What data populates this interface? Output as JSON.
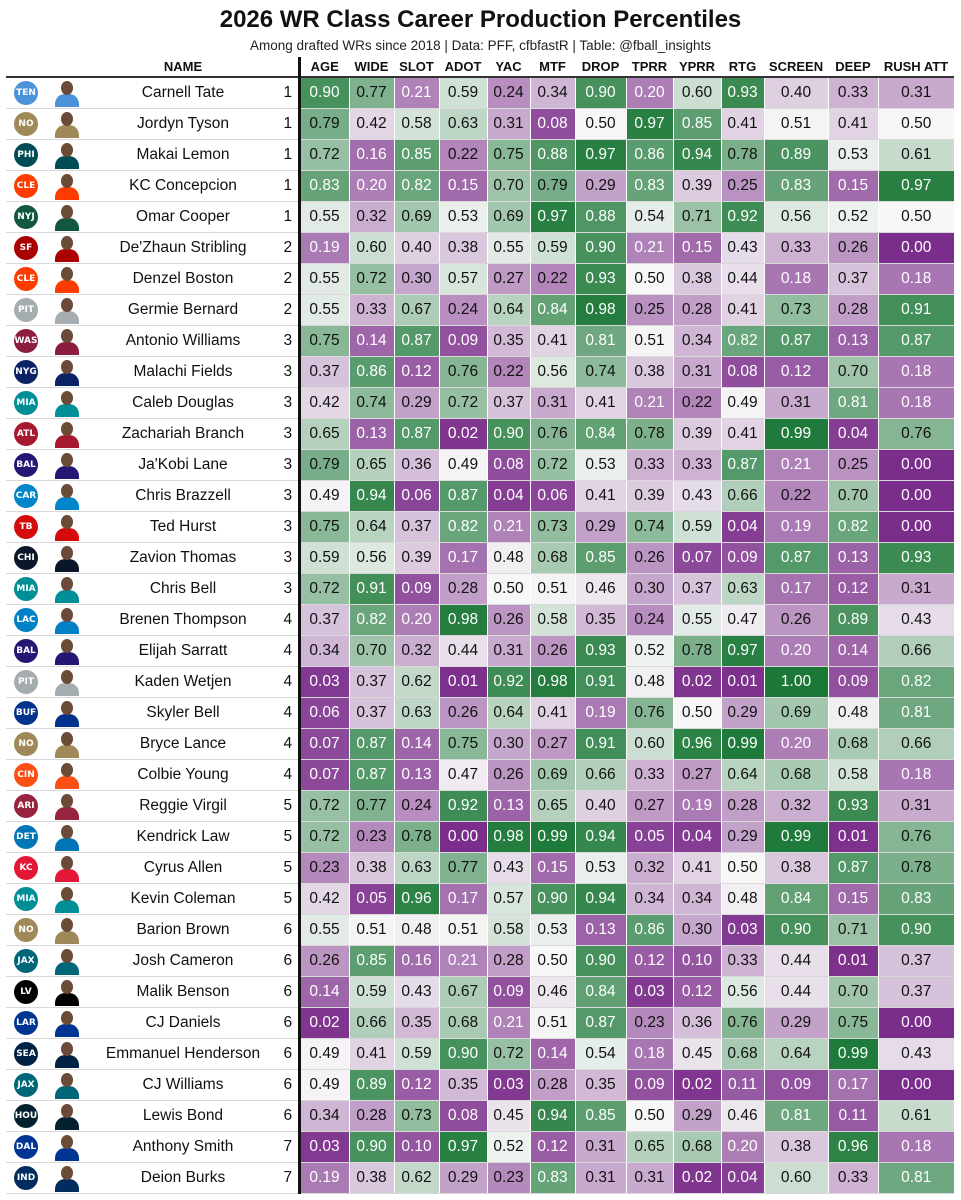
{
  "chart_data": {
    "type": "table",
    "title": "2026 WR Class Career Production Percentiles",
    "subtitle": "Among drafted WRs since 2018 | Data: PFF, cfbfastR | Table: @fball_insights",
    "columns": [
      "NAME",
      "AGE",
      "WIDE",
      "SLOT",
      "ADOT",
      "YAC",
      "MTF",
      "DROP",
      "TPRR",
      "YPRR",
      "RTG",
      "SCREEN",
      "DEEP",
      "RUSH ATT"
    ],
    "color_scale": {
      "low": "#7b2d8b",
      "mid": "#f7f7f7",
      "high": "#1b7837"
    },
    "rows": [
      {
        "team": "TEN",
        "team_color": "#4b92db",
        "name": "Carnell Tate",
        "round": "1",
        "values": [
          "0.90",
          "0.77",
          "0.21",
          "0.59",
          "0.24",
          "0.34",
          "0.90",
          "0.20",
          "0.60",
          "0.93",
          "0.40",
          "0.33",
          "0.31"
        ]
      },
      {
        "team": "NO",
        "team_color": "#9f8958",
        "name": "Jordyn Tyson",
        "round": "1",
        "values": [
          "0.79",
          "0.42",
          "0.58",
          "0.63",
          "0.31",
          "0.08",
          "0.50",
          "0.97",
          "0.85",
          "0.41",
          "0.51",
          "0.41",
          "0.50"
        ]
      },
      {
        "team": "PHI",
        "team_color": "#004c54",
        "name": "Makai Lemon",
        "round": "1",
        "values": [
          "0.72",
          "0.16",
          "0.85",
          "0.22",
          "0.75",
          "0.88",
          "0.97",
          "0.86",
          "0.94",
          "0.78",
          "0.89",
          "0.53",
          "0.61"
        ]
      },
      {
        "team": "CLE",
        "team_color": "#ff3c00",
        "name": "KC Concepcion",
        "round": "1",
        "values": [
          "0.83",
          "0.20",
          "0.82",
          "0.15",
          "0.70",
          "0.79",
          "0.29",
          "0.83",
          "0.39",
          "0.25",
          "0.83",
          "0.15",
          "0.97"
        ]
      },
      {
        "team": "NYJ",
        "team_color": "#125740",
        "name": "Omar Cooper",
        "round": "1",
        "values": [
          "0.55",
          "0.32",
          "0.69",
          "0.53",
          "0.69",
          "0.97",
          "0.88",
          "0.54",
          "0.71",
          "0.92",
          "0.56",
          "0.52",
          "0.50"
        ]
      },
      {
        "team": "SF",
        "team_color": "#aa0000",
        "name": "De'Zhaun Stribling",
        "round": "2",
        "values": [
          "0.19",
          "0.60",
          "0.40",
          "0.38",
          "0.55",
          "0.59",
          "0.90",
          "0.21",
          "0.15",
          "0.43",
          "0.33",
          "0.26",
          "0.00"
        ]
      },
      {
        "team": "CLE",
        "team_color": "#ff3c00",
        "name": "Denzel Boston",
        "round": "2",
        "values": [
          "0.55",
          "0.72",
          "0.30",
          "0.57",
          "0.27",
          "0.22",
          "0.93",
          "0.50",
          "0.38",
          "0.44",
          "0.18",
          "0.37",
          "0.18"
        ]
      },
      {
        "team": "PIT",
        "team_color": "#a5acaf",
        "name": "Germie Bernard",
        "round": "2",
        "values": [
          "0.55",
          "0.33",
          "0.67",
          "0.24",
          "0.64",
          "0.84",
          "0.98",
          "0.25",
          "0.28",
          "0.41",
          "0.73",
          "0.28",
          "0.91"
        ]
      },
      {
        "team": "WAS",
        "team_color": "#8b1e3f",
        "name": "Antonio Williams",
        "round": "3",
        "values": [
          "0.75",
          "0.14",
          "0.87",
          "0.09",
          "0.35",
          "0.41",
          "0.81",
          "0.51",
          "0.34",
          "0.82",
          "0.87",
          "0.13",
          "0.87"
        ]
      },
      {
        "team": "NYG",
        "team_color": "#0b2265",
        "name": "Malachi Fields",
        "round": "3",
        "values": [
          "0.37",
          "0.86",
          "0.12",
          "0.76",
          "0.22",
          "0.56",
          "0.74",
          "0.38",
          "0.31",
          "0.08",
          "0.12",
          "0.70",
          "0.18"
        ]
      },
      {
        "team": "MIA",
        "team_color": "#008e97",
        "name": "Caleb Douglas",
        "round": "3",
        "values": [
          "0.42",
          "0.74",
          "0.29",
          "0.72",
          "0.37",
          "0.31",
          "0.41",
          "0.21",
          "0.22",
          "0.49",
          "0.31",
          "0.81",
          "0.18"
        ]
      },
      {
        "team": "ATL",
        "team_color": "#a71930",
        "name": "Zachariah Branch",
        "round": "3",
        "values": [
          "0.65",
          "0.13",
          "0.87",
          "0.02",
          "0.90",
          "0.76",
          "0.84",
          "0.78",
          "0.39",
          "0.41",
          "0.99",
          "0.04",
          "0.76"
        ]
      },
      {
        "team": "BAL",
        "team_color": "#241773",
        "name": "Ja'Kobi Lane",
        "round": "3",
        "values": [
          "0.79",
          "0.65",
          "0.36",
          "0.49",
          "0.08",
          "0.72",
          "0.53",
          "0.33",
          "0.33",
          "0.87",
          "0.21",
          "0.25",
          "0.00"
        ]
      },
      {
        "team": "CAR",
        "team_color": "#0085ca",
        "name": "Chris Brazzell",
        "round": "3",
        "values": [
          "0.49",
          "0.94",
          "0.06",
          "0.87",
          "0.04",
          "0.06",
          "0.41",
          "0.39",
          "0.43",
          "0.66",
          "0.22",
          "0.70",
          "0.00"
        ]
      },
      {
        "team": "TB",
        "team_color": "#d50a0a",
        "name": "Ted Hurst",
        "round": "3",
        "values": [
          "0.75",
          "0.64",
          "0.37",
          "0.82",
          "0.21",
          "0.73",
          "0.29",
          "0.74",
          "0.59",
          "0.04",
          "0.19",
          "0.82",
          "0.00"
        ]
      },
      {
        "team": "CHI",
        "team_color": "#0b162a",
        "name": "Zavion Thomas",
        "round": "3",
        "values": [
          "0.59",
          "0.56",
          "0.39",
          "0.17",
          "0.48",
          "0.68",
          "0.85",
          "0.26",
          "0.07",
          "0.09",
          "0.87",
          "0.13",
          "0.93"
        ]
      },
      {
        "team": "MIA",
        "team_color": "#008e97",
        "name": "Chris Bell",
        "round": "3",
        "values": [
          "0.72",
          "0.91",
          "0.09",
          "0.28",
          "0.50",
          "0.51",
          "0.46",
          "0.30",
          "0.37",
          "0.63",
          "0.17",
          "0.12",
          "0.31"
        ]
      },
      {
        "team": "LAC",
        "team_color": "#0080c6",
        "name": "Brenen Thompson",
        "round": "4",
        "values": [
          "0.37",
          "0.82",
          "0.20",
          "0.98",
          "0.26",
          "0.58",
          "0.35",
          "0.24",
          "0.55",
          "0.47",
          "0.26",
          "0.89",
          "0.43"
        ]
      },
      {
        "team": "BAL",
        "team_color": "#241773",
        "name": "Elijah Sarratt",
        "round": "4",
        "values": [
          "0.34",
          "0.70",
          "0.32",
          "0.44",
          "0.31",
          "0.26",
          "0.93",
          "0.52",
          "0.78",
          "0.97",
          "0.20",
          "0.14",
          "0.66"
        ]
      },
      {
        "team": "PIT",
        "team_color": "#a5acaf",
        "name": "Kaden Wetjen",
        "round": "4",
        "values": [
          "0.03",
          "0.37",
          "0.62",
          "0.01",
          "0.92",
          "0.98",
          "0.91",
          "0.48",
          "0.02",
          "0.01",
          "1.00",
          "0.09",
          "0.82"
        ]
      },
      {
        "team": "BUF",
        "team_color": "#00338d",
        "name": "Skyler Bell",
        "round": "4",
        "values": [
          "0.06",
          "0.37",
          "0.63",
          "0.26",
          "0.64",
          "0.41",
          "0.19",
          "0.76",
          "0.50",
          "0.29",
          "0.69",
          "0.48",
          "0.81"
        ]
      },
      {
        "team": "NO",
        "team_color": "#9f8958",
        "name": "Bryce Lance",
        "round": "4",
        "values": [
          "0.07",
          "0.87",
          "0.14",
          "0.75",
          "0.30",
          "0.27",
          "0.91",
          "0.60",
          "0.96",
          "0.99",
          "0.20",
          "0.68",
          "0.66"
        ]
      },
      {
        "team": "CIN",
        "team_color": "#fb4f14",
        "name": "Colbie Young",
        "round": "4",
        "values": [
          "0.07",
          "0.87",
          "0.13",
          "0.47",
          "0.26",
          "0.69",
          "0.66",
          "0.33",
          "0.27",
          "0.64",
          "0.68",
          "0.58",
          "0.18"
        ]
      },
      {
        "team": "ARI",
        "team_color": "#97233f",
        "name": "Reggie Virgil",
        "round": "5",
        "values": [
          "0.72",
          "0.77",
          "0.24",
          "0.92",
          "0.13",
          "0.65",
          "0.40",
          "0.27",
          "0.19",
          "0.28",
          "0.32",
          "0.93",
          "0.31"
        ]
      },
      {
        "team": "DET",
        "team_color": "#0076b6",
        "name": "Kendrick Law",
        "round": "5",
        "values": [
          "0.72",
          "0.23",
          "0.78",
          "0.00",
          "0.98",
          "0.99",
          "0.94",
          "0.05",
          "0.04",
          "0.29",
          "0.99",
          "0.01",
          "0.76"
        ]
      },
      {
        "team": "KC",
        "team_color": "#e31837",
        "name": "Cyrus Allen",
        "round": "5",
        "values": [
          "0.23",
          "0.38",
          "0.63",
          "0.77",
          "0.43",
          "0.15",
          "0.53",
          "0.32",
          "0.41",
          "0.50",
          "0.38",
          "0.87",
          "0.78"
        ]
      },
      {
        "team": "MIA",
        "team_color": "#008e97",
        "name": "Kevin Coleman",
        "round": "5",
        "values": [
          "0.42",
          "0.05",
          "0.96",
          "0.17",
          "0.57",
          "0.90",
          "0.94",
          "0.34",
          "0.34",
          "0.48",
          "0.84",
          "0.15",
          "0.83"
        ]
      },
      {
        "team": "NO",
        "team_color": "#9f8958",
        "name": "Barion Brown",
        "round": "6",
        "values": [
          "0.55",
          "0.51",
          "0.48",
          "0.51",
          "0.58",
          "0.53",
          "0.13",
          "0.86",
          "0.30",
          "0.03",
          "0.90",
          "0.71",
          "0.90"
        ]
      },
      {
        "team": "JAX",
        "team_color": "#006778",
        "name": "Josh Cameron",
        "round": "6",
        "values": [
          "0.26",
          "0.85",
          "0.16",
          "0.21",
          "0.28",
          "0.50",
          "0.90",
          "0.12",
          "0.10",
          "0.33",
          "0.44",
          "0.01",
          "0.37"
        ]
      },
      {
        "team": "LV",
        "team_color": "#000000",
        "name": "Malik Benson",
        "round": "6",
        "values": [
          "0.14",
          "0.59",
          "0.43",
          "0.67",
          "0.09",
          "0.46",
          "0.84",
          "0.03",
          "0.12",
          "0.56",
          "0.44",
          "0.70",
          "0.37"
        ]
      },
      {
        "team": "LAR",
        "team_color": "#003594",
        "name": "CJ Daniels",
        "round": "6",
        "values": [
          "0.02",
          "0.66",
          "0.35",
          "0.68",
          "0.21",
          "0.51",
          "0.87",
          "0.23",
          "0.36",
          "0.76",
          "0.29",
          "0.75",
          "0.00"
        ]
      },
      {
        "team": "SEA",
        "team_color": "#002244",
        "name": "Emmanuel Henderson",
        "round": "6",
        "values": [
          "0.49",
          "0.41",
          "0.59",
          "0.90",
          "0.72",
          "0.14",
          "0.54",
          "0.18",
          "0.45",
          "0.68",
          "0.64",
          "0.99",
          "0.43"
        ]
      },
      {
        "team": "JAX",
        "team_color": "#006778",
        "name": "CJ Williams",
        "round": "6",
        "values": [
          "0.49",
          "0.89",
          "0.12",
          "0.35",
          "0.03",
          "0.28",
          "0.35",
          "0.09",
          "0.02",
          "0.11",
          "0.09",
          "0.17",
          "0.00"
        ]
      },
      {
        "team": "HOU",
        "team_color": "#03202f",
        "name": "Lewis Bond",
        "round": "6",
        "values": [
          "0.34",
          "0.28",
          "0.73",
          "0.08",
          "0.45",
          "0.94",
          "0.85",
          "0.50",
          "0.29",
          "0.46",
          "0.81",
          "0.11",
          "0.61"
        ]
      },
      {
        "team": "DAL",
        "team_color": "#003594",
        "name": "Anthony Smith",
        "round": "7",
        "values": [
          "0.03",
          "0.90",
          "0.10",
          "0.97",
          "0.52",
          "0.12",
          "0.31",
          "0.65",
          "0.68",
          "0.20",
          "0.38",
          "0.96",
          "0.18"
        ]
      },
      {
        "team": "IND",
        "team_color": "#002c5f",
        "name": "Deion Burks",
        "round": "7",
        "values": [
          "0.19",
          "0.38",
          "0.62",
          "0.29",
          "0.23",
          "0.83",
          "0.31",
          "0.31",
          "0.02",
          "0.04",
          "0.60",
          "0.33",
          "0.81"
        ]
      }
    ]
  }
}
